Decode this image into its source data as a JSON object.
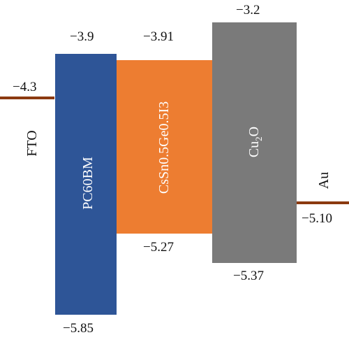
{
  "diagram": {
    "colors": {
      "electrode": "#8B3A10",
      "pc60bm": "#2E5597",
      "perovskite": "#ED7D31",
      "cu2o": "#7A7A7A"
    },
    "fto": {
      "name": "FTO",
      "level": "−4.3"
    },
    "au": {
      "name": "Au",
      "level": "−5.10"
    },
    "pc60bm": {
      "name": "PC60BM",
      "lumo": "−3.9",
      "homo": "−5.85"
    },
    "perovskite": {
      "name": "CsSn0.5Ge0.5I3",
      "lumo": "−3.91",
      "homo": "−5.27"
    },
    "cu2o": {
      "name_main": "Cu",
      "name_sub": "2",
      "name_tail": "O",
      "lumo": "−3.2",
      "homo": "−5.37"
    }
  }
}
